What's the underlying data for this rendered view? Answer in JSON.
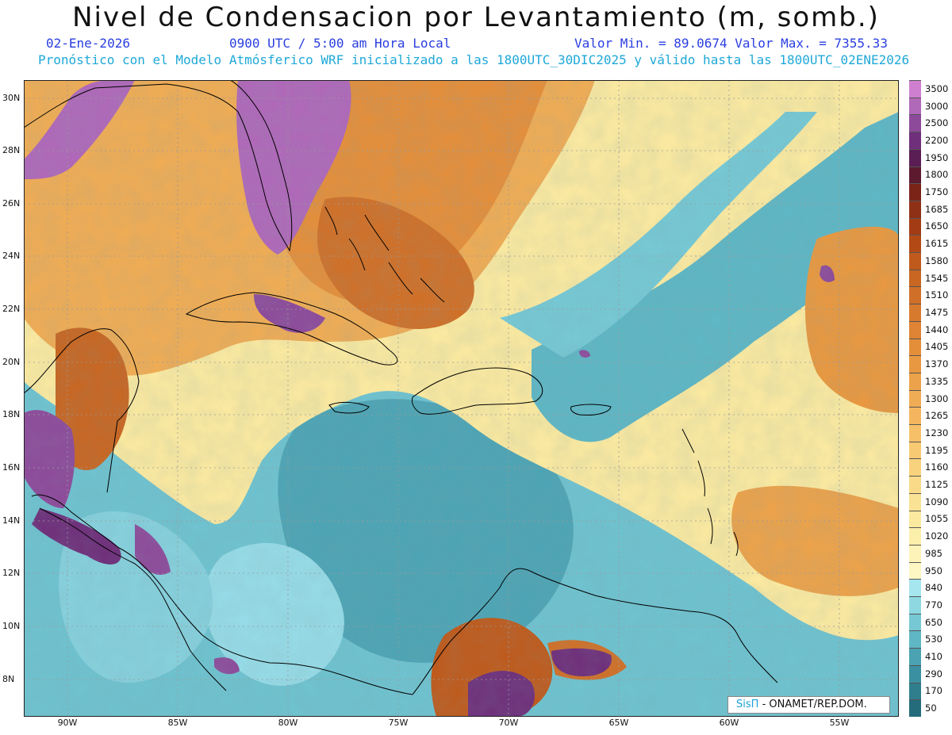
{
  "title": "Nivel de Condensacion por Levantamiento (m, somb.)",
  "header": {
    "date": "02-Ene-2026",
    "time": "0900 UTC / 5:00 am Hora Local",
    "min_max": "Valor Min. = 89.0674  Valor Max. = 7355.33",
    "model_info": "Pronóstico con el Modelo Atmósferico WRF inicializado a las 1800UTC_30DIC2025 y válido hasta las  1800UTC_02ENE2026"
  },
  "axes": {
    "lat_labels": [
      "30N",
      "28N",
      "26N",
      "24N",
      "22N",
      "20N",
      "18N",
      "16N",
      "14N",
      "12N",
      "10N",
      "8N"
    ],
    "lon_labels": [
      "90W",
      "85W",
      "80W",
      "75W",
      "70W",
      "65W",
      "60W",
      "55W"
    ]
  },
  "colorbar": {
    "labels": [
      "3500",
      "3000",
      "2500",
      "2200",
      "1950",
      "1800",
      "1750",
      "1685",
      "1650",
      "1615",
      "1580",
      "1545",
      "1510",
      "1475",
      "1440",
      "1405",
      "1370",
      "1335",
      "1300",
      "1265",
      "1230",
      "1195",
      "1160",
      "1125",
      "1090",
      "1055",
      "1020",
      "985",
      "950",
      "840",
      "770",
      "650",
      "530",
      "410",
      "290",
      "170",
      "50"
    ],
    "colors": [
      "#cf7fcf",
      "#b068b8",
      "#8e4a9a",
      "#6f2f7a",
      "#5a1e55",
      "#5c1a2e",
      "#7a2418",
      "#8e3016",
      "#a33c14",
      "#b34a16",
      "#bf5a1c",
      "#c86622",
      "#d07028",
      "#d87a2e",
      "#de8434",
      "#e48e3a",
      "#e89840",
      "#eca24a",
      "#f0ac54",
      "#f3b65e",
      "#f5c068",
      "#f7c972",
      "#f8d27c",
      "#f9da88",
      "#fae294",
      "#fbe9a0",
      "#fcefac",
      "#fdf3b8",
      "#fef7c4",
      "#a6e6ee",
      "#8ed8e2",
      "#76c8d4",
      "#5fb6c4",
      "#4aa2b2",
      "#3a90a0",
      "#2e7e8e",
      "#246c7c"
    ]
  },
  "credit": {
    "brand": "SisΠ",
    "org": "- ONAMET/REP.DOM."
  }
}
